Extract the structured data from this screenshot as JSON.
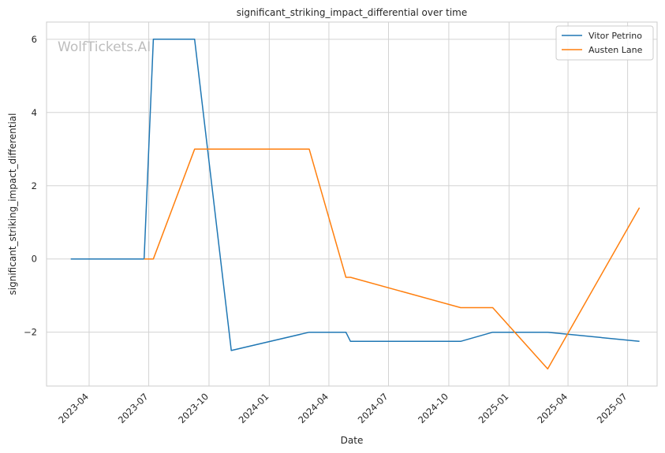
{
  "chart_data": {
    "type": "line",
    "title": "significant_striking_impact_differential over time",
    "xlabel": "Date",
    "ylabel": "significant_striking_impact_differential",
    "watermark": "WolfTickets.AI",
    "x_ticks": [
      "2023-04",
      "2023-07",
      "2023-10",
      "2024-01",
      "2024-04",
      "2024-07",
      "2024-10",
      "2025-01",
      "2025-04",
      "2025-07"
    ],
    "y_ticks": [
      "−2",
      "0",
      "2",
      "4",
      "6"
    ],
    "y_tick_values": [
      -2,
      0,
      2,
      4,
      6
    ],
    "xlim": [
      "2023-01-26",
      "2025-08-15"
    ],
    "ylim": [
      -3.47,
      6.47
    ],
    "grid": true,
    "legend_position": "top-right",
    "series": [
      {
        "name": "Vitor Petrino",
        "color": "#1f77b4",
        "points": [
          [
            "2023-03-04",
            0
          ],
          [
            "2023-06-24",
            0
          ],
          [
            "2023-07-08",
            6
          ],
          [
            "2023-09-09",
            6
          ],
          [
            "2023-11-04",
            -2.5
          ],
          [
            "2024-03-02",
            -2
          ],
          [
            "2024-04-27",
            -2
          ],
          [
            "2024-05-04",
            -2.25
          ],
          [
            "2024-10-19",
            -2.25
          ],
          [
            "2024-12-07",
            -2
          ],
          [
            "2025-03-01",
            -2
          ],
          [
            "2025-07-19",
            -2.25
          ]
        ]
      },
      {
        "name": "Austen Lane",
        "color": "#ff7f0e",
        "points": [
          [
            "2023-06-24",
            0
          ],
          [
            "2023-07-08",
            0
          ],
          [
            "2023-09-09",
            3
          ],
          [
            "2024-03-02",
            3
          ],
          [
            "2024-04-27",
            -0.5
          ],
          [
            "2024-05-04",
            -0.5
          ],
          [
            "2024-10-19",
            -1.33
          ],
          [
            "2024-12-07",
            -1.33
          ],
          [
            "2025-03-01",
            -3
          ],
          [
            "2025-07-19",
            1.4
          ]
        ]
      }
    ]
  }
}
